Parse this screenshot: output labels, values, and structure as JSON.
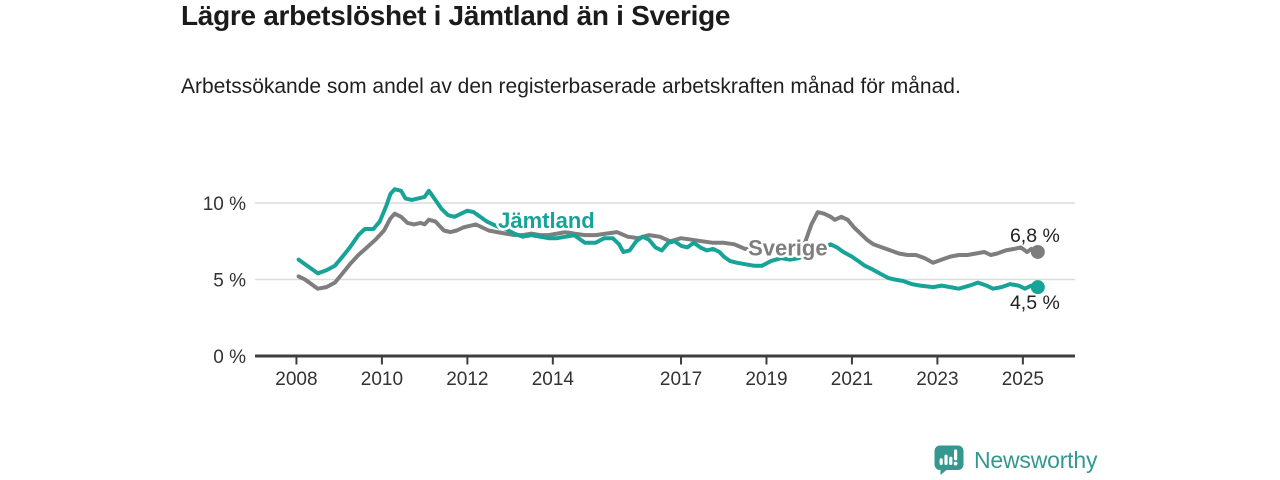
{
  "header": {
    "title": "Lägre arbetslöshet i Jämtland än i Sverige",
    "subtitle": "Arbetssökande som andel av den registerbaserade arbetskraften månad för månad."
  },
  "footer": {
    "brand": "Newsworthy",
    "logo_icon": "bar-chart-speech-bubble-icon"
  },
  "colors": {
    "jamtland": "#17a398",
    "sverige": "#7e7e7e",
    "grid": "#dcdcdc",
    "axis": "#3d3d3d",
    "axis_text": "#333333",
    "annotation_text": "#222222",
    "brand_teal": "#35988f",
    "background": "#ffffff"
  },
  "chart_data": {
    "type": "line",
    "title": "Lägre arbetslöshet i Jämtland än i Sverige",
    "subtitle": "Arbetssökande som andel av den registerbaserade arbetskraften månad för månad.",
    "xlabel": "",
    "ylabel": "",
    "xlim": [
      2007.03,
      2026.22
    ],
    "ylim": [
      0,
      11.8
    ],
    "grid": "horizontal",
    "y_gridlines": [
      5,
      10
    ],
    "y_ticks": [
      {
        "value": 0,
        "label": "0 %"
      },
      {
        "value": 5,
        "label": "5 %"
      },
      {
        "value": 10,
        "label": "10 %"
      }
    ],
    "x_ticks": [
      {
        "value": 2008,
        "label": "2008"
      },
      {
        "value": 2010,
        "label": "2010"
      },
      {
        "value": 2012,
        "label": "2012"
      },
      {
        "value": 2014,
        "label": "2014"
      },
      {
        "value": 2017,
        "label": "2017"
      },
      {
        "value": 2019,
        "label": "2019"
      },
      {
        "value": 2021,
        "label": "2021"
      },
      {
        "value": 2023,
        "label": "2023"
      },
      {
        "value": 2025,
        "label": "2025"
      }
    ],
    "legend_position": "inline-labels",
    "series": [
      {
        "name": "Jämtland",
        "color": "#17a398",
        "end_label": "4,5 %",
        "end_label_pos": "below",
        "inline_label": {
          "x": 2013.85,
          "y": 8.9
        },
        "points": [
          [
            2008.05,
            6.3
          ],
          [
            2008.2,
            6.0
          ],
          [
            2008.35,
            5.7
          ],
          [
            2008.5,
            5.4
          ],
          [
            2008.7,
            5.6
          ],
          [
            2008.9,
            5.9
          ],
          [
            2009.05,
            6.4
          ],
          [
            2009.25,
            7.1
          ],
          [
            2009.45,
            7.9
          ],
          [
            2009.6,
            8.3
          ],
          [
            2009.8,
            8.3
          ],
          [
            2009.95,
            8.8
          ],
          [
            2010.1,
            9.8
          ],
          [
            2010.2,
            10.6
          ],
          [
            2010.3,
            10.9
          ],
          [
            2010.45,
            10.8
          ],
          [
            2010.55,
            10.3
          ],
          [
            2010.7,
            10.2
          ],
          [
            2010.85,
            10.3
          ],
          [
            2011.0,
            10.4
          ],
          [
            2011.1,
            10.8
          ],
          [
            2011.25,
            10.2
          ],
          [
            2011.4,
            9.6
          ],
          [
            2011.55,
            9.2
          ],
          [
            2011.7,
            9.1
          ],
          [
            2011.85,
            9.3
          ],
          [
            2012.0,
            9.5
          ],
          [
            2012.15,
            9.4
          ],
          [
            2012.3,
            9.1
          ],
          [
            2012.45,
            8.8
          ],
          [
            2012.6,
            8.6
          ],
          [
            2012.75,
            8.4
          ],
          [
            2012.9,
            8.3
          ],
          [
            2013.1,
            8.0
          ],
          [
            2013.3,
            7.8
          ],
          [
            2013.5,
            7.9
          ],
          [
            2013.7,
            7.8
          ],
          [
            2013.9,
            7.7
          ],
          [
            2014.1,
            7.7
          ],
          [
            2014.3,
            7.8
          ],
          [
            2014.5,
            7.9
          ],
          [
            2014.75,
            7.4
          ],
          [
            2015.0,
            7.4
          ],
          [
            2015.2,
            7.7
          ],
          [
            2015.4,
            7.7
          ],
          [
            2015.55,
            7.3
          ],
          [
            2015.65,
            6.8
          ],
          [
            2015.8,
            6.9
          ],
          [
            2015.95,
            7.5
          ],
          [
            2016.1,
            7.8
          ],
          [
            2016.25,
            7.6
          ],
          [
            2016.4,
            7.1
          ],
          [
            2016.55,
            6.9
          ],
          [
            2016.7,
            7.4
          ],
          [
            2016.85,
            7.5
          ],
          [
            2017.0,
            7.2
          ],
          [
            2017.15,
            7.1
          ],
          [
            2017.3,
            7.4
          ],
          [
            2017.45,
            7.1
          ],
          [
            2017.6,
            6.9
          ],
          [
            2017.75,
            7.0
          ],
          [
            2017.9,
            6.8
          ],
          [
            2018.0,
            6.5
          ],
          [
            2018.15,
            6.2
          ],
          [
            2018.3,
            6.1
          ],
          [
            2018.5,
            6.0
          ],
          [
            2018.7,
            5.9
          ],
          [
            2018.9,
            5.9
          ],
          [
            2019.1,
            6.2
          ],
          [
            2019.35,
            6.4
          ],
          [
            2019.55,
            6.3
          ],
          [
            2019.75,
            6.4
          ],
          [
            2019.95,
            6.6
          ],
          [
            2020.15,
            6.9
          ],
          [
            2020.35,
            7.1
          ],
          [
            2020.5,
            7.3
          ],
          [
            2020.65,
            7.1
          ],
          [
            2020.8,
            6.8
          ],
          [
            2021.0,
            6.5
          ],
          [
            2021.15,
            6.2
          ],
          [
            2021.3,
            5.9
          ],
          [
            2021.45,
            5.7
          ],
          [
            2021.65,
            5.4
          ],
          [
            2021.85,
            5.1
          ],
          [
            2022.0,
            5.0
          ],
          [
            2022.2,
            4.9
          ],
          [
            2022.4,
            4.7
          ],
          [
            2022.6,
            4.6
          ],
          [
            2022.9,
            4.5
          ],
          [
            2023.1,
            4.6
          ],
          [
            2023.3,
            4.5
          ],
          [
            2023.5,
            4.4
          ],
          [
            2023.75,
            4.6
          ],
          [
            2023.95,
            4.8
          ],
          [
            2024.15,
            4.6
          ],
          [
            2024.3,
            4.4
          ],
          [
            2024.5,
            4.5
          ],
          [
            2024.7,
            4.7
          ],
          [
            2024.9,
            4.6
          ],
          [
            2025.05,
            4.4
          ],
          [
            2025.2,
            4.6
          ],
          [
            2025.35,
            4.5
          ]
        ]
      },
      {
        "name": "Sverige",
        "color": "#7e7e7e",
        "end_label": "6,8 %",
        "end_label_pos": "above",
        "inline_label": {
          "x": 2019.5,
          "y": 7.1
        },
        "points": [
          [
            2008.05,
            5.2
          ],
          [
            2008.2,
            5.0
          ],
          [
            2008.35,
            4.7
          ],
          [
            2008.5,
            4.4
          ],
          [
            2008.7,
            4.5
          ],
          [
            2008.9,
            4.8
          ],
          [
            2009.05,
            5.3
          ],
          [
            2009.25,
            6.0
          ],
          [
            2009.45,
            6.6
          ],
          [
            2009.65,
            7.1
          ],
          [
            2009.85,
            7.6
          ],
          [
            2010.05,
            8.2
          ],
          [
            2010.2,
            9.0
          ],
          [
            2010.3,
            9.3
          ],
          [
            2010.45,
            9.1
          ],
          [
            2010.6,
            8.7
          ],
          [
            2010.75,
            8.6
          ],
          [
            2010.9,
            8.7
          ],
          [
            2011.0,
            8.6
          ],
          [
            2011.1,
            8.9
          ],
          [
            2011.25,
            8.8
          ],
          [
            2011.45,
            8.2
          ],
          [
            2011.6,
            8.1
          ],
          [
            2011.75,
            8.2
          ],
          [
            2011.9,
            8.4
          ],
          [
            2012.05,
            8.5
          ],
          [
            2012.2,
            8.6
          ],
          [
            2012.35,
            8.4
          ],
          [
            2012.5,
            8.2
          ],
          [
            2012.7,
            8.1
          ],
          [
            2012.9,
            8.0
          ],
          [
            2013.1,
            7.9
          ],
          [
            2013.3,
            7.9
          ],
          [
            2013.5,
            8.0
          ],
          [
            2013.7,
            7.9
          ],
          [
            2013.9,
            7.9
          ],
          [
            2014.1,
            8.0
          ],
          [
            2014.3,
            8.1
          ],
          [
            2014.5,
            8.0
          ],
          [
            2014.75,
            7.9
          ],
          [
            2015.0,
            7.9
          ],
          [
            2015.25,
            8.0
          ],
          [
            2015.5,
            8.1
          ],
          [
            2015.75,
            7.8
          ],
          [
            2016.0,
            7.7
          ],
          [
            2016.25,
            7.9
          ],
          [
            2016.5,
            7.8
          ],
          [
            2016.75,
            7.5
          ],
          [
            2017.0,
            7.7
          ],
          [
            2017.25,
            7.6
          ],
          [
            2017.5,
            7.5
          ],
          [
            2017.75,
            7.4
          ],
          [
            2018.0,
            7.4
          ],
          [
            2018.25,
            7.3
          ],
          [
            2018.5,
            7.0
          ],
          [
            2018.75,
            7.0
          ],
          [
            2019.0,
            7.0
          ],
          [
            2019.25,
            7.1
          ],
          [
            2019.5,
            7.0
          ],
          [
            2019.7,
            7.1
          ],
          [
            2019.9,
            7.4
          ],
          [
            2020.05,
            8.6
          ],
          [
            2020.2,
            9.4
          ],
          [
            2020.35,
            9.3
          ],
          [
            2020.5,
            9.1
          ],
          [
            2020.6,
            8.9
          ],
          [
            2020.75,
            9.1
          ],
          [
            2020.9,
            8.9
          ],
          [
            2021.05,
            8.4
          ],
          [
            2021.2,
            8.0
          ],
          [
            2021.35,
            7.6
          ],
          [
            2021.5,
            7.3
          ],
          [
            2021.7,
            7.1
          ],
          [
            2021.9,
            6.9
          ],
          [
            2022.1,
            6.7
          ],
          [
            2022.3,
            6.6
          ],
          [
            2022.5,
            6.6
          ],
          [
            2022.7,
            6.4
          ],
          [
            2022.9,
            6.1
          ],
          [
            2023.1,
            6.3
          ],
          [
            2023.3,
            6.5
          ],
          [
            2023.5,
            6.6
          ],
          [
            2023.7,
            6.6
          ],
          [
            2023.9,
            6.7
          ],
          [
            2024.1,
            6.8
          ],
          [
            2024.25,
            6.6
          ],
          [
            2024.4,
            6.7
          ],
          [
            2024.6,
            6.9
          ],
          [
            2024.8,
            7.0
          ],
          [
            2024.95,
            7.1
          ],
          [
            2025.1,
            6.8
          ],
          [
            2025.2,
            7.0
          ],
          [
            2025.35,
            6.8
          ]
        ]
      }
    ]
  }
}
